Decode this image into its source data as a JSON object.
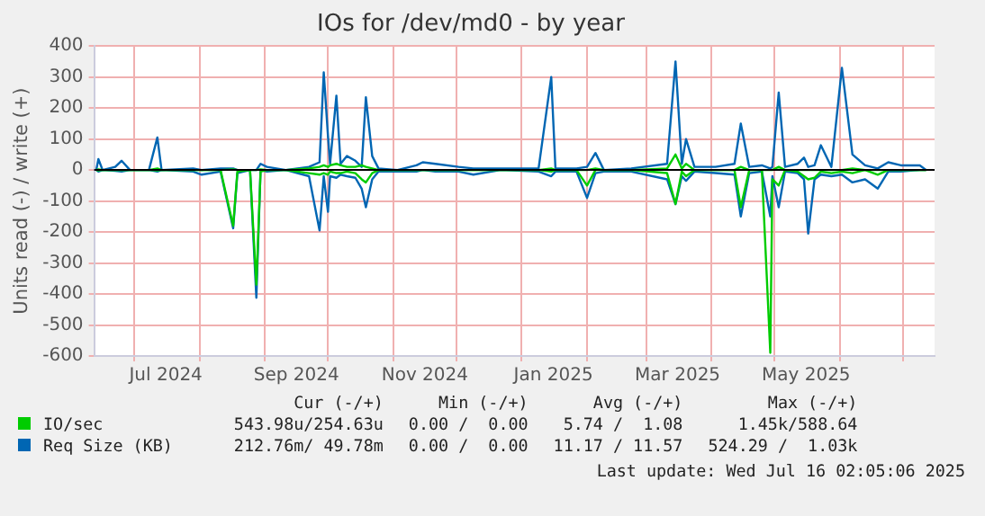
{
  "chart_data": {
    "type": "line",
    "title": "IOs for /dev/md0 - by year",
    "ylabel": "Units read (-) / write (+)",
    "x": [
      "2024-06-13",
      "2024-06-14",
      "2024-06-16",
      "2024-06-22",
      "2024-06-25",
      "2024-06-29",
      "2024-07-08",
      "2024-07-12",
      "2024-07-14",
      "2024-07-29",
      "2024-08-02",
      "2024-08-11",
      "2024-08-17",
      "2024-08-19",
      "2024-08-25",
      "2024-08-28",
      "2024-08-30",
      "2024-09-02",
      "2024-09-11",
      "2024-09-22",
      "2024-09-27",
      "2024-09-29",
      "2024-10-01",
      "2024-10-02",
      "2024-10-05",
      "2024-10-07",
      "2024-10-10",
      "2024-10-14",
      "2024-10-17",
      "2024-10-19",
      "2024-10-22",
      "2024-10-25",
      "2024-11-03",
      "2024-11-12",
      "2024-11-15",
      "2024-11-21",
      "2024-12-02",
      "2024-12-09",
      "2024-12-22",
      "2025-01-09",
      "2025-01-15",
      "2025-01-17",
      "2025-01-27",
      "2025-02-01",
      "2025-02-05",
      "2025-02-09",
      "2025-02-22",
      "2025-03-11",
      "2025-03-15",
      "2025-03-18",
      "2025-03-20",
      "2025-03-24",
      "2025-04-03",
      "2025-04-12",
      "2025-04-15",
      "2025-04-19",
      "2025-04-25",
      "2025-04-29",
      "2025-04-30",
      "2025-05-03",
      "2025-05-06",
      "2025-05-12",
      "2025-05-15",
      "2025-05-17",
      "2025-05-20",
      "2025-05-23",
      "2025-05-28",
      "2025-06-02",
      "2025-06-07",
      "2025-06-13",
      "2025-06-19",
      "2025-06-24",
      "2025-06-30",
      "2025-07-09",
      "2025-07-12"
    ],
    "series": [
      {
        "name": "IO/sec",
        "color": "#00cc00",
        "values": [
          0,
          2,
          0,
          0,
          0,
          0,
          0,
          5,
          0,
          0,
          0,
          0,
          2,
          0,
          0,
          0,
          2,
          0,
          0,
          5,
          10,
          15,
          10,
          15,
          20,
          15,
          10,
          10,
          15,
          10,
          5,
          0,
          0,
          0,
          0,
          0,
          0,
          0,
          0,
          0,
          5,
          0,
          0,
          0,
          5,
          0,
          0,
          5,
          50,
          5,
          20,
          0,
          0,
          0,
          10,
          0,
          0,
          0,
          0,
          10,
          0,
          0,
          0,
          0,
          0,
          0,
          0,
          0,
          5,
          0,
          0,
          0,
          0,
          0,
          0
        ]
      },
      {
        "color": "#00cc00",
        "values": [
          0,
          -1,
          0,
          0,
          0,
          0,
          0,
          -1,
          0,
          0,
          0,
          0,
          -180,
          -5,
          0,
          -370,
          -5,
          0,
          0,
          -10,
          -15,
          -10,
          -15,
          -5,
          -10,
          -10,
          -5,
          -10,
          -30,
          -40,
          -10,
          0,
          0,
          0,
          0,
          0,
          0,
          0,
          0,
          0,
          -5,
          0,
          0,
          -50,
          0,
          0,
          0,
          -10,
          -110,
          -5,
          -20,
          0,
          0,
          0,
          -120,
          0,
          0,
          -590,
          -30,
          -50,
          0,
          -5,
          -20,
          -30,
          -25,
          -5,
          -10,
          -5,
          -10,
          0,
          -15,
          0,
          0,
          0,
          0
        ]
      },
      {
        "name": "Req Size (KB)",
        "color": "#0066b3",
        "values": [
          0,
          35,
          0,
          10,
          30,
          0,
          0,
          105,
          0,
          5,
          0,
          5,
          5,
          0,
          0,
          0,
          20,
          10,
          0,
          10,
          25,
          315,
          110,
          20,
          240,
          20,
          45,
          30,
          10,
          235,
          45,
          5,
          0,
          15,
          25,
          20,
          10,
          5,
          5,
          5,
          300,
          5,
          5,
          10,
          55,
          0,
          5,
          20,
          350,
          20,
          100,
          10,
          10,
          20,
          150,
          10,
          15,
          5,
          10,
          250,
          10,
          20,
          40,
          10,
          15,
          80,
          10,
          330,
          50,
          15,
          5,
          25,
          15,
          15,
          0
        ]
      },
      {
        "color": "#0066b3",
        "values": [
          0,
          -5,
          0,
          -3,
          -5,
          0,
          0,
          -5,
          0,
          -5,
          -15,
          -5,
          -188,
          -10,
          0,
          -412,
          0,
          -5,
          0,
          -20,
          -195,
          -20,
          -135,
          -20,
          -25,
          -15,
          -20,
          -25,
          -60,
          -120,
          -30,
          -5,
          -5,
          -5,
          0,
          -5,
          -5,
          -15,
          0,
          -5,
          -20,
          -5,
          -5,
          -90,
          -10,
          -5,
          -5,
          -30,
          -110,
          -20,
          -35,
          -5,
          -10,
          -15,
          -150,
          -10,
          -5,
          -150,
          -20,
          -120,
          -5,
          -10,
          -30,
          -205,
          -30,
          -15,
          -20,
          -15,
          -40,
          -30,
          -60,
          -5,
          -5,
          0,
          0
        ]
      }
    ],
    "xlim": [
      "2024-06-12",
      "2025-07-16"
    ],
    "xticks": [
      {
        "value": "2024-07-01",
        "label": null
      },
      {
        "value": "2024-07-16",
        "label": "Jul 2024"
      },
      {
        "value": "2024-08-01",
        "label": null
      },
      {
        "value": "2024-09-01",
        "label": null
      },
      {
        "value": "2024-09-16",
        "label": "Sep 2024"
      },
      {
        "value": "2024-10-01",
        "label": null
      },
      {
        "value": "2024-11-01",
        "label": null
      },
      {
        "value": "2024-11-16",
        "label": "Nov 2024"
      },
      {
        "value": "2024-12-01",
        "label": null
      },
      {
        "value": "2025-01-01",
        "label": null
      },
      {
        "value": "2025-01-16",
        "label": "Jan 2025"
      },
      {
        "value": "2025-02-01",
        "label": null
      },
      {
        "value": "2025-03-01",
        "label": null
      },
      {
        "value": "2025-03-16",
        "label": "Mar 2025"
      },
      {
        "value": "2025-04-01",
        "label": null
      },
      {
        "value": "2025-05-01",
        "label": null
      },
      {
        "value": "2025-05-16",
        "label": "May 2025"
      },
      {
        "value": "2025-06-01",
        "label": null
      },
      {
        "value": "2025-07-01",
        "label": null
      }
    ],
    "ylim": [
      -600,
      400
    ],
    "yticks": [
      -600,
      -500,
      -400,
      -300,
      -200,
      -100,
      0,
      100,
      200,
      300,
      400
    ],
    "grid": true,
    "legend": "bottom",
    "marker": "none",
    "line_style": "solid",
    "ref_lines": [
      {
        "axis": "y",
        "value": 0,
        "color": "#000000"
      }
    ],
    "annotations": [
      "Cur (-/+)",
      "Min (-/+)",
      "Avg (-/+)",
      "Max (-/+)",
      "543.98u/254.63u",
      "0.00 /  0.00",
      "5.74 /  1.08",
      "1.45k/588.64",
      "212.76m/ 49.78m",
      "0.00 /  0.00",
      "11.17 / 11.57",
      "524.29 /  1.03k",
      "Last update: Wed Jul 16 02:05:06 2025"
    ]
  }
}
